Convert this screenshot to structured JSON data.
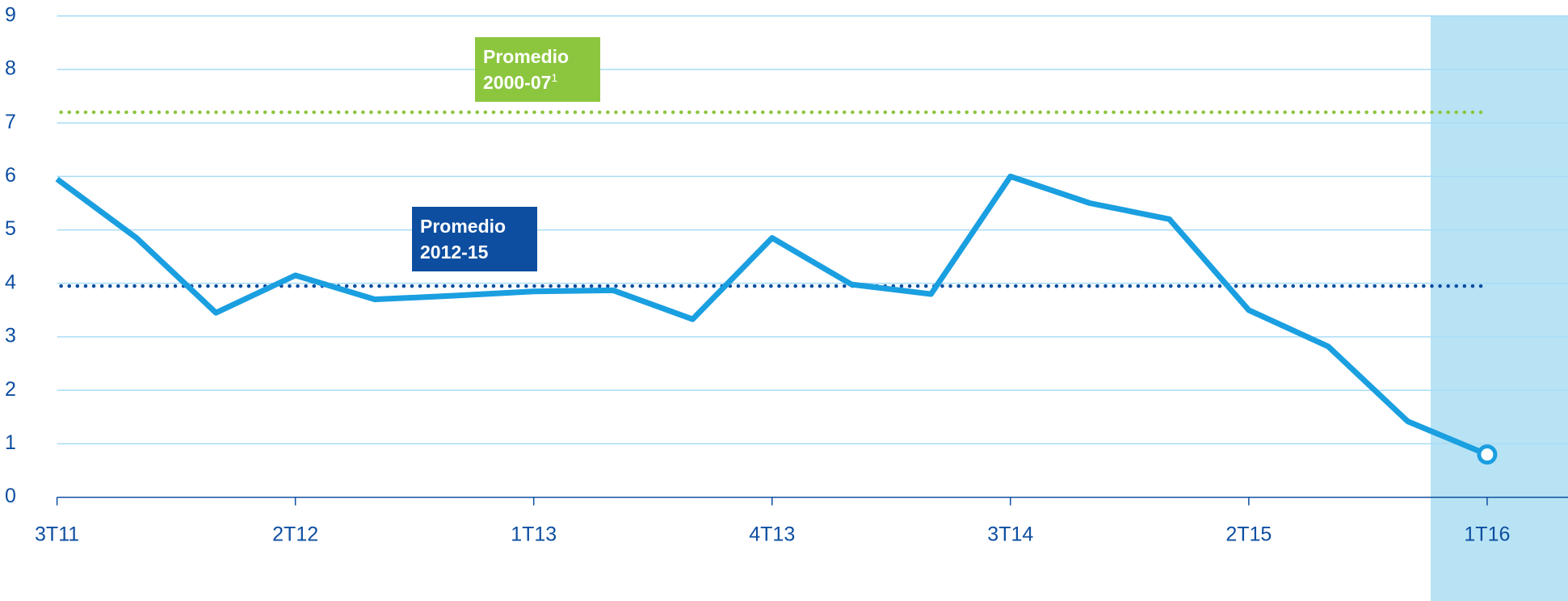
{
  "chart_data": {
    "type": "line",
    "categories": [
      "3T11",
      null,
      null,
      "2T12",
      null,
      null,
      "1T13",
      null,
      null,
      "4T13",
      null,
      null,
      "3T14",
      null,
      null,
      "2T15",
      null,
      null,
      "1T16"
    ],
    "values": [
      5.95,
      4.85,
      3.45,
      4.15,
      3.7,
      3.77,
      3.85,
      3.87,
      3.33,
      4.85,
      3.98,
      3.8,
      6.0,
      5.5,
      5.2,
      3.5,
      2.82,
      1.42,
      0.8
    ],
    "color": "#1a9fe0",
    "ylim": [
      0,
      9
    ],
    "yticks": [
      0,
      1,
      2,
      3,
      4,
      5,
      6,
      7,
      8,
      9
    ],
    "grid": true,
    "reference_lines": [
      {
        "lines": [
          "Promedio",
          "2000-07"
        ],
        "sup": "1",
        "value": 7.2,
        "color": "#8cc63f"
      },
      {
        "lines": [
          "Promedio",
          "2012-15"
        ],
        "value": 3.95,
        "color": "#0d4ea0"
      }
    ]
  }
}
